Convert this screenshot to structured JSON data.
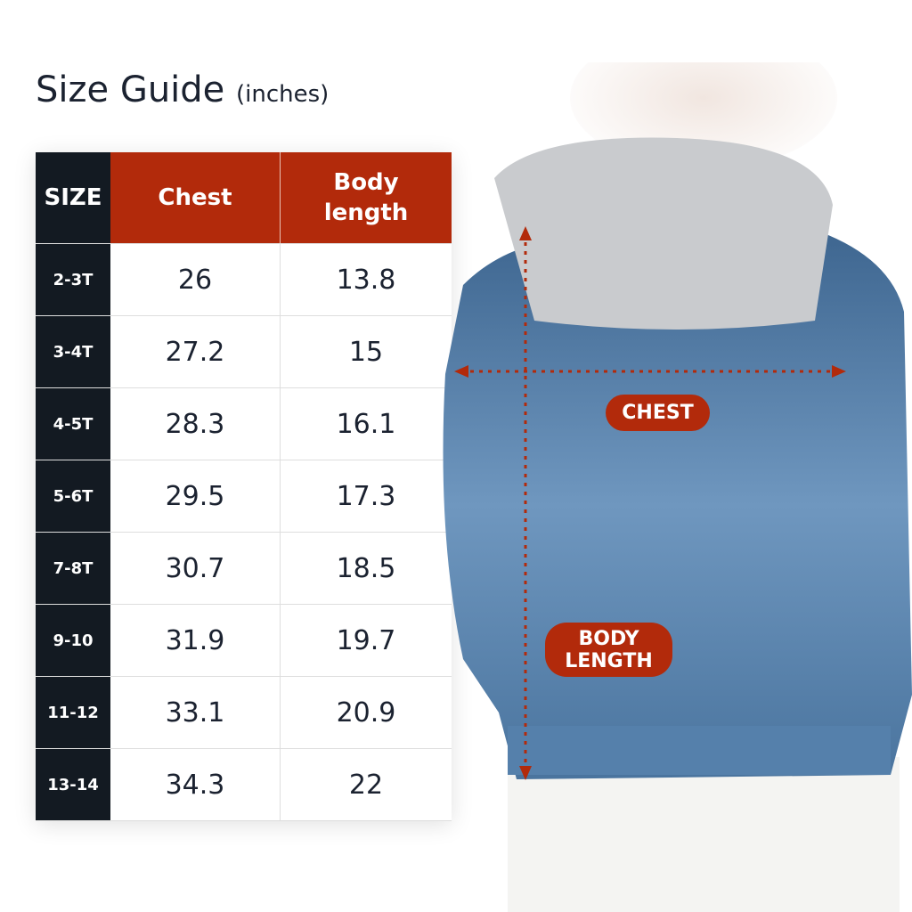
{
  "title": {
    "main": "Size Guide",
    "unit": "(inches)"
  },
  "table": {
    "headers": [
      "SIZE",
      "Chest",
      "Body length"
    ],
    "rows": [
      [
        "2-3T",
        "26",
        "13.8"
      ],
      [
        "3-4T",
        "27.2",
        "15"
      ],
      [
        "4-5T",
        "28.3",
        "16.1"
      ],
      [
        "5-6T",
        "29.5",
        "17.3"
      ],
      [
        "7-8T",
        "30.7",
        "18.5"
      ],
      [
        "9-10",
        "31.9",
        "19.7"
      ],
      [
        "11-12",
        "33.1",
        "20.9"
      ],
      [
        "13-14",
        "34.3",
        "22"
      ]
    ]
  },
  "diagram": {
    "chest_label": "CHEST",
    "body_length_label": "BODY LENGTH"
  },
  "colors": {
    "accent": "#b22a0b",
    "size_column": "#131a22",
    "text": "#1b2230",
    "denim": "#4f7aa6",
    "hood": "#c9cbce"
  }
}
